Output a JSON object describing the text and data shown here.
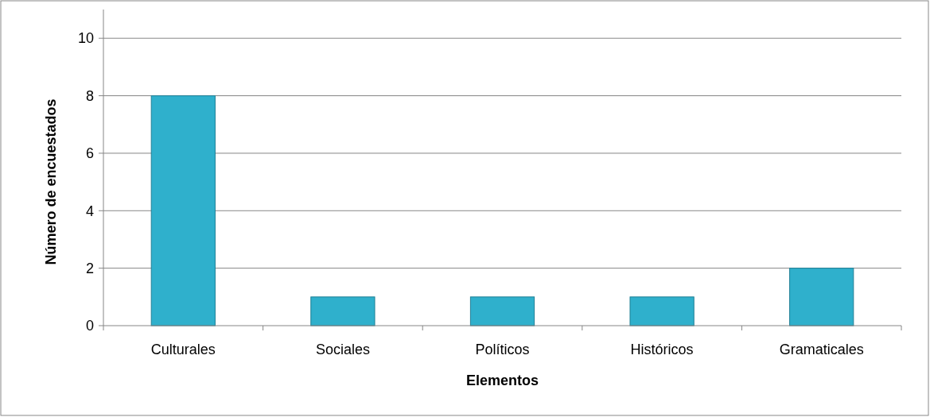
{
  "chart_data": {
    "type": "bar",
    "xlabel": "Elementos",
    "ylabel": "Número de encuestados",
    "categories": [
      "Culturales",
      "Sociales",
      "Políticos",
      "Históricos",
      "Gramaticales"
    ],
    "values": [
      8,
      1,
      1,
      1,
      2
    ],
    "color": "#2fb0cc",
    "ylim": [
      0,
      11
    ],
    "yticks": [
      0,
      2,
      4,
      6,
      8,
      10
    ],
    "grid": "y"
  }
}
